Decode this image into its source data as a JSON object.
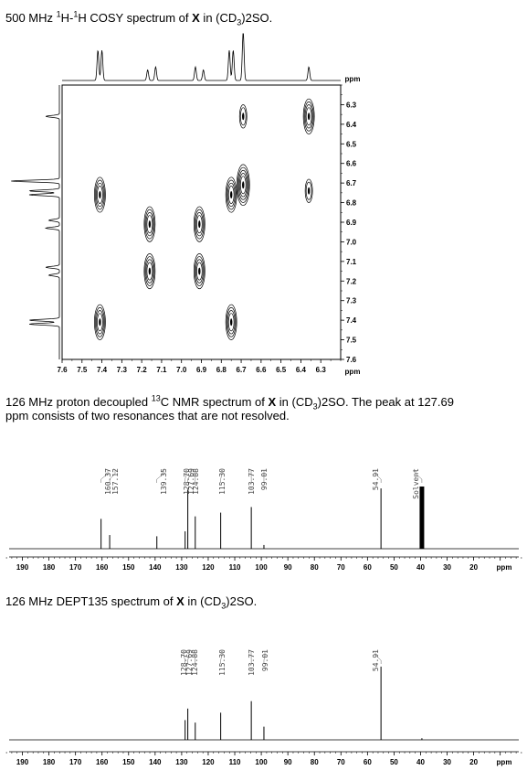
{
  "captions": {
    "cosy": {
      "pre": "500 MHz ",
      "sup1": "1",
      "mid1": "H-",
      "sup2": "1",
      "mid2": "H COSY spectrum of ",
      "bold": "X",
      "post1": " in (CD",
      "sub": "3",
      "post2": ")2SO."
    },
    "c13": {
      "pre": "126 MHz proton decoupled ",
      "sup": "13",
      "mid": "C NMR spectrum of ",
      "bold": "X",
      "post1": " in (CD",
      "sub": "3",
      "post2": ")2SO. The peak at 127.69",
      "line2": "ppm consists of two resonances that are not resolved."
    },
    "dept": {
      "pre": "126 MHz DEPT135 spectrum of ",
      "bold": "X",
      "post1": " in (CD",
      "sub": "3",
      "post2": ")2SO."
    }
  },
  "chart_data": [
    {
      "type": "heatmap",
      "subtype": "2D COSY contour",
      "xlabel": "ppm",
      "ylabel": "ppm",
      "xlim": [
        7.6,
        6.2
      ],
      "ylim": [
        7.6,
        6.2
      ],
      "x_ticks": [
        7.6,
        7.5,
        7.4,
        7.3,
        7.2,
        7.1,
        7.0,
        6.9,
        6.8,
        6.7,
        6.6,
        6.5,
        6.4,
        6.3
      ],
      "x_tick_labels": [
        "7.6",
        "7.5",
        "7.4",
        "7.3",
        "7.2",
        "7.1",
        "7.0",
        "6.9",
        "6.8",
        "6.7",
        "6.6",
        "6.5",
        "6.4",
        "6.3"
      ],
      "y_ticks": [
        6.3,
        6.4,
        6.5,
        6.6,
        6.7,
        6.8,
        6.9,
        7.0,
        7.1,
        7.2,
        7.3,
        7.4,
        7.5,
        7.6
      ],
      "y_tick_labels": [
        "6.3",
        "6.4",
        "6.5",
        "6.6",
        "6.7",
        "6.8",
        "6.9",
        "7.0",
        "7.1",
        "7.2",
        "7.3",
        "7.4",
        "7.5",
        "7.6"
      ],
      "projection_peaks": [
        {
          "ppm": 7.42,
          "height": 1.0
        },
        {
          "ppm": 7.4,
          "height": 1.0
        },
        {
          "ppm": 7.17,
          "height": 0.35
        },
        {
          "ppm": 7.13,
          "height": 0.45
        },
        {
          "ppm": 6.93,
          "height": 0.45
        },
        {
          "ppm": 6.89,
          "height": 0.35
        },
        {
          "ppm": 6.76,
          "height": 1.0
        },
        {
          "ppm": 6.74,
          "height": 1.0
        },
        {
          "ppm": 6.69,
          "height": 1.6
        },
        {
          "ppm": 6.36,
          "height": 0.45
        }
      ],
      "cross_peaks": [
        {
          "x": 6.69,
          "y": 6.36,
          "r": [
            0.8,
            0.6
          ]
        },
        {
          "x": 6.36,
          "y": 6.36,
          "r": [
            1.2,
            1.0,
            0.8,
            0.6
          ]
        },
        {
          "x": 7.41,
          "y": 6.76,
          "r": [
            1.2,
            1.0,
            0.8,
            0.6
          ]
        },
        {
          "x": 6.75,
          "y": 6.76,
          "r": [
            1.2,
            1.0,
            0.8,
            0.6
          ]
        },
        {
          "x": 6.69,
          "y": 6.71,
          "r": [
            1.4,
            1.2,
            1.0,
            0.8,
            0.6
          ]
        },
        {
          "x": 6.36,
          "y": 6.74,
          "r": [
            0.8,
            0.6
          ]
        },
        {
          "x": 7.16,
          "y": 6.91,
          "r": [
            1.2,
            1.0,
            0.8,
            0.6
          ]
        },
        {
          "x": 6.91,
          "y": 6.91,
          "r": [
            1.2,
            1.0,
            0.8,
            0.6
          ]
        },
        {
          "x": 7.16,
          "y": 7.15,
          "r": [
            1.2,
            1.0,
            0.8,
            0.6
          ]
        },
        {
          "x": 6.91,
          "y": 7.15,
          "r": [
            1.2,
            1.0,
            0.8,
            0.6
          ]
        },
        {
          "x": 7.41,
          "y": 7.41,
          "r": [
            1.2,
            1.0,
            0.8,
            0.6
          ]
        },
        {
          "x": 6.75,
          "y": 7.41,
          "r": [
            1.2,
            1.0,
            0.8,
            0.6
          ]
        }
      ]
    },
    {
      "type": "line",
      "subtype": "1D 13C NMR spectrum",
      "xlabel": "ppm",
      "xlim": [
        195,
        3
      ],
      "x_ticks": [
        190,
        180,
        170,
        160,
        150,
        140,
        130,
        120,
        110,
        100,
        90,
        80,
        70,
        60,
        50,
        40,
        30,
        20
      ],
      "x_tick_labels": [
        "190",
        "180",
        "170",
        "160",
        "150",
        "140",
        "130",
        "120",
        "110",
        "100",
        "90",
        "80",
        "70",
        "60",
        "50",
        "40",
        "30",
        "20"
      ],
      "peak_labels": [
        "160.37",
        "157.12",
        "139.35",
        "128.70",
        "127.69",
        "124.88",
        "115.30",
        "103.77",
        "99.01",
        "54.91",
        "Solvent"
      ],
      "peaks": [
        {
          "ppm": 160.37,
          "height": 0.48
        },
        {
          "ppm": 157.12,
          "height": 0.22
        },
        {
          "ppm": 139.35,
          "height": 0.2
        },
        {
          "ppm": 128.7,
          "height": 0.28
        },
        {
          "ppm": 127.69,
          "height": 0.95
        },
        {
          "ppm": 124.88,
          "height": 0.52
        },
        {
          "ppm": 115.3,
          "height": 0.58
        },
        {
          "ppm": 103.77,
          "height": 0.67
        },
        {
          "ppm": 99.01,
          "height": 0.06
        },
        {
          "ppm": 54.91,
          "height": 0.97
        },
        {
          "ppm": 39.5,
          "height": 1.0
        }
      ]
    },
    {
      "type": "line",
      "subtype": "1D DEPT135 spectrum",
      "xlabel": "ppm",
      "xlim": [
        195,
        3
      ],
      "x_ticks": [
        190,
        180,
        170,
        160,
        150,
        140,
        130,
        120,
        110,
        100,
        90,
        80,
        70,
        60,
        50,
        40,
        30,
        20
      ],
      "x_tick_labels": [
        "190",
        "180",
        "170",
        "160",
        "150",
        "140",
        "130",
        "120",
        "110",
        "100",
        "90",
        "80",
        "70",
        "60",
        "50",
        "40",
        "30",
        "20"
      ],
      "peak_labels": [
        "128.70",
        "127.69",
        "124.88",
        "115.30",
        "103.77",
        "99.01",
        "54.91"
      ],
      "peaks": [
        {
          "ppm": 128.7,
          "height": 0.24
        },
        {
          "ppm": 127.69,
          "height": 0.38
        },
        {
          "ppm": 124.88,
          "height": 0.21
        },
        {
          "ppm": 115.3,
          "height": 0.33
        },
        {
          "ppm": 103.77,
          "height": 0.47
        },
        {
          "ppm": 99.01,
          "height": 0.16
        },
        {
          "ppm": 54.91,
          "height": 0.89
        },
        {
          "ppm": 39.5,
          "height": 0.02
        }
      ]
    }
  ]
}
